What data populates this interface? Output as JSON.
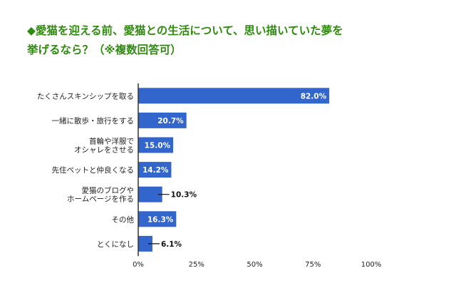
{
  "title_lines": [
    "◆愛猫を迎える前、愛猫との生活について、思い描いていた夢を",
    "挙げるなら？（※複数回答可）"
  ],
  "colors": {
    "title": "#2e8b0e",
    "bar": "#3366cc",
    "axis": "#333333",
    "grid": "#dddddd",
    "label_text": "#222222",
    "inside_value_text": "#ffffff",
    "outside_value_text": "#111111"
  },
  "chart_data": {
    "type": "bar",
    "orientation": "horizontal",
    "categories": [
      [
        "たくさんスキンシップを取る"
      ],
      [
        "一緒に散歩・旅行をする"
      ],
      [
        "首輪や洋服で",
        "オシャレをさせる"
      ],
      [
        "先住ペットと仲良くなる"
      ],
      [
        "愛猫のブログや",
        "ホームページを作る"
      ],
      [
        "その他"
      ],
      [
        "とくになし"
      ]
    ],
    "values": [
      82.0,
      20.7,
      15.0,
      14.2,
      10.3,
      16.3,
      6.1
    ],
    "value_labels": [
      "82.0%",
      "20.7%",
      "15.0%",
      "14.2%",
      "10.3%",
      "16.3%",
      "6.1%"
    ],
    "x_ticks": [
      0,
      25,
      50,
      75,
      100
    ],
    "x_tick_labels": [
      "0%",
      "25%",
      "50%",
      "75%",
      "100%"
    ],
    "xlim": [
      0,
      100
    ],
    "grid": false,
    "legend": "none"
  }
}
